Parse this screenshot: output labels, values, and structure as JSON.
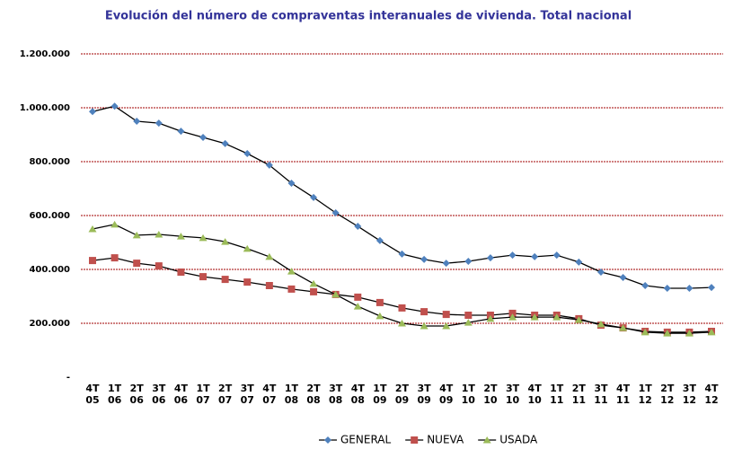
{
  "chart_data": {
    "type": "line",
    "title": "Evolución del número de compraventas interanuales de vivienda. Total nacional",
    "categories": [
      "4T 05",
      "1T 06",
      "2T 06",
      "3T 06",
      "4T 06",
      "1T 07",
      "2T 07",
      "3T 07",
      "4T 07",
      "1T 08",
      "2T 08",
      "3T 08",
      "4T 08",
      "1T 09",
      "2T 09",
      "3T 09",
      "4T 09",
      "1T 10",
      "2T 10",
      "3T 10",
      "4T 10",
      "1T 11",
      "2T 11",
      "3T 11",
      "4T 11",
      "1T 12",
      "2T 12",
      "3T 12",
      "4T 12"
    ],
    "series": [
      {
        "name": "GENERAL",
        "color": "#4f81bd",
        "marker": "diamond",
        "values": [
          986000,
          1006000,
          950000,
          943000,
          913000,
          890000,
          867000,
          830000,
          787000,
          720000,
          667000,
          610000,
          560000,
          507000,
          457000,
          437000,
          423000,
          430000,
          443000,
          453000,
          447000,
          453000,
          427000,
          390000,
          370000,
          340000,
          330000,
          330000,
          333000
        ]
      },
      {
        "name": "NUEVA",
        "color": "#c0504d",
        "marker": "square",
        "values": [
          433000,
          443000,
          423000,
          413000,
          390000,
          373000,
          363000,
          353000,
          340000,
          327000,
          317000,
          307000,
          297000,
          277000,
          257000,
          243000,
          233000,
          230000,
          230000,
          237000,
          230000,
          230000,
          217000,
          193000,
          183000,
          170000,
          167000,
          167000,
          170000
        ]
      },
      {
        "name": "USADA",
        "color": "#9bbb59",
        "marker": "triangle",
        "values": [
          550000,
          567000,
          527000,
          530000,
          523000,
          517000,
          503000,
          477000,
          447000,
          393000,
          347000,
          307000,
          263000,
          227000,
          200000,
          190000,
          190000,
          203000,
          217000,
          223000,
          223000,
          223000,
          213000,
          197000,
          183000,
          167000,
          163000,
          163000,
          167000
        ]
      }
    ],
    "ylim": [
      0,
      1200000
    ],
    "yticks": [
      {
        "value": 0,
        "label": "-"
      },
      {
        "value": 200000,
        "label": "200.000"
      },
      {
        "value": 400000,
        "label": "400.000"
      },
      {
        "value": 600000,
        "label": "600.000"
      },
      {
        "value": 800000,
        "label": "800.000"
      },
      {
        "value": 1000000,
        "label": "1.000.000"
      },
      {
        "value": 1200000,
        "label": "1.200.000"
      }
    ],
    "grid": true,
    "grid_color": "#a00000",
    "legend": "bottom"
  }
}
